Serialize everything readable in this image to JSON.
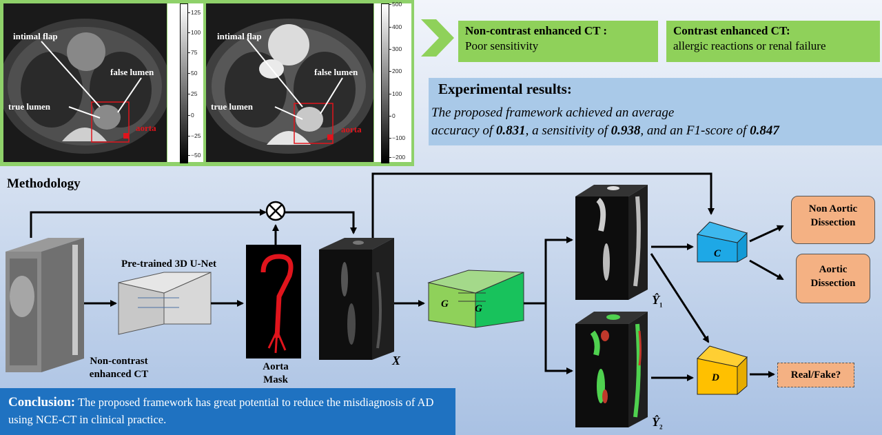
{
  "panel": {
    "left_image": {
      "labels": {
        "intimal_flap": "intimal flap",
        "false_lumen": "false lumen",
        "true_lumen": "true lumen",
        "aorta": "aorta"
      },
      "colorbar_ticks": [
        "125",
        "100",
        "75",
        "50",
        "25",
        "0",
        "−25",
        "−50"
      ]
    },
    "right_image": {
      "labels": {
        "intimal_flap": "intimal flap",
        "false_lumen": "false lumen",
        "true_lumen": "true lumen",
        "aorta": "aorta"
      },
      "colorbar_ticks": [
        "500",
        "400",
        "300",
        "200",
        "100",
        "0",
        "−100",
        "−200"
      ]
    }
  },
  "comparison": {
    "non_contrast": {
      "title": "Non-contrast enhanced CT :",
      "text": "Poor sensitivity"
    },
    "contrast": {
      "title": "Contrast enhanced CT:",
      "text": "allergic reactions or renal failure"
    }
  },
  "experimental": {
    "heading": "Experimental results:",
    "line1": "The proposed framework achieved an average",
    "line2_a": "accuracy of ",
    "accuracy": "0.831",
    "line2_b": ", a sensitivity of ",
    "sensitivity": "0.938",
    "line2_c": ", and an F1-score of ",
    "f1": "0.847"
  },
  "methodology": {
    "title": "Methodology",
    "unet_label": "Pre-trained 3D U-Net",
    "input_label_1": "Non-contrast",
    "input_label_2": "enhanced CT",
    "mask_label_1": "Aorta",
    "mask_label_2": "Mask",
    "x_label": "X",
    "g_label": "G",
    "c_label": "C",
    "d_label": "D",
    "y1_label": "Ŷ",
    "y1_sub": "1",
    "y2_label": "Ŷ",
    "y2_sub": "2",
    "multiply_symbol": "⊗",
    "out_non_aortic_1": "Non Aortic",
    "out_non_aortic_2": "Dissection",
    "out_aortic_1": "Aortic",
    "out_aortic_2": "Dissection",
    "real_fake": "Real/Fake?"
  },
  "conclusion": {
    "heading": "Conclusion:",
    "text": " The proposed framework has great potential to reduce the misdiagnosis of AD using NCE-CT in clinical practice."
  },
  "colors": {
    "green": "#8fd15a",
    "blue_box": "#a9c9e8",
    "conclusion": "#1f72c1",
    "orange": "#f4b183",
    "c_block": "#1ea8e6",
    "d_block": "#ffc000",
    "g_block": "#66cc33",
    "unet": "#cccccc"
  }
}
